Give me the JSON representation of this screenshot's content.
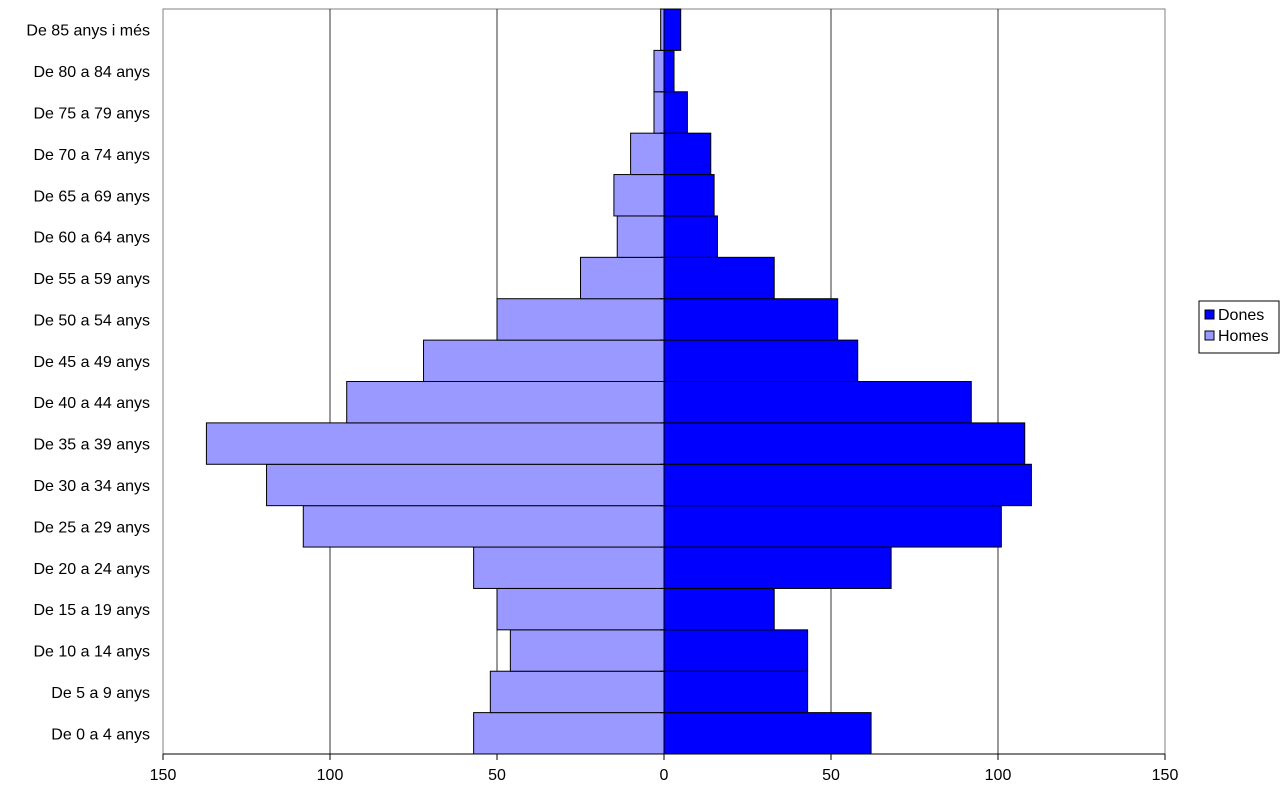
{
  "chart_data": {
    "type": "bar",
    "orientation": "horizontal",
    "categories": [
      "De 0 a 4 anys",
      "De 5 a 9 anys",
      "De 10 a 14 anys",
      "De 15 a 19 anys",
      "De 20 a 24 anys",
      "De 25 a 29 anys",
      "De 30 a 34 anys",
      "De 35 a 39 anys",
      "De 40 a 44 anys",
      "De 45 a 49 anys",
      "De 50 a 54 anys",
      "De 55 a 59 anys",
      "De 60 a 64 anys",
      "De 65 a 69 anys",
      "De 70 a 74 anys",
      "De 75 a 79 anys",
      "De 80 a 84 anys",
      "De 85 anys i més"
    ],
    "series": [
      {
        "name": "Dones",
        "color": "#0000ff",
        "values": [
          62,
          43,
          43,
          33,
          68,
          101,
          110,
          108,
          92,
          58,
          52,
          33,
          16,
          15,
          14,
          7,
          3,
          5
        ]
      },
      {
        "name": "Homes",
        "color": "#9999ff",
        "values": [
          -57,
          -52,
          -46,
          -50,
          -57,
          -108,
          -119,
          -137,
          -95,
          -72,
          -50,
          -25,
          -14,
          -15,
          -10,
          -3,
          -3,
          -1
        ]
      }
    ],
    "xlim": [
      -150,
      150
    ],
    "x_ticks": [
      -150,
      -100,
      -50,
      0,
      50,
      100,
      150
    ],
    "x_tick_labels": [
      "150",
      "100",
      "50",
      "0",
      "50",
      "100",
      "150"
    ],
    "grid": "vertical",
    "legend_position": "right"
  }
}
